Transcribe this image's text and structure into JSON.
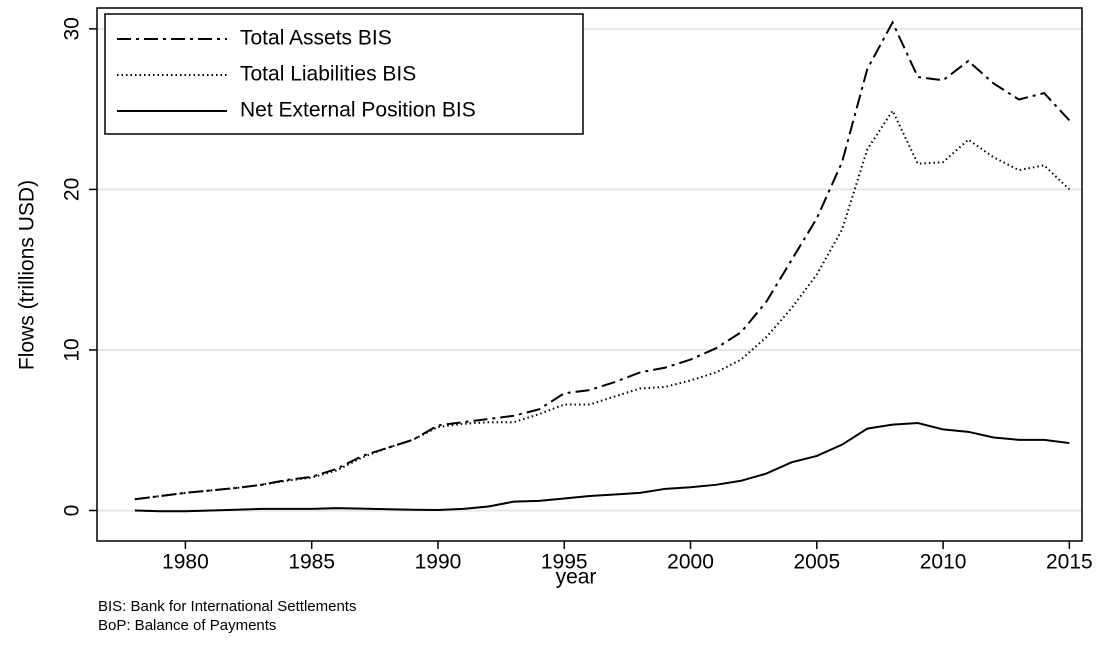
{
  "chart_data": {
    "type": "line",
    "x_label": "year",
    "y_label": "Flows (trillions USD)",
    "notes": [
      "BIS: Bank for International Settlements",
      "BoP: Balance of Payments"
    ],
    "x": [
      1978,
      1979,
      1980,
      1981,
      1982,
      1983,
      1984,
      1985,
      1986,
      1987,
      1988,
      1989,
      1990,
      1991,
      1992,
      1993,
      1994,
      1995,
      1996,
      1997,
      1998,
      1999,
      2000,
      2001,
      2002,
      2003,
      2004,
      2005,
      2006,
      2007,
      2008,
      2009,
      2010,
      2011,
      2012,
      2013,
      2014,
      2015
    ],
    "series": [
      {
        "name": "Total Assets BIS",
        "color": "#000000",
        "dash": "dash-dot",
        "values": [
          0.7,
          0.9,
          1.1,
          1.25,
          1.4,
          1.6,
          1.9,
          2.1,
          2.6,
          3.4,
          3.9,
          4.4,
          5.3,
          5.5,
          5.7,
          5.9,
          6.3,
          7.3,
          7.5,
          8.0,
          8.6,
          8.9,
          9.4,
          10.1,
          11.1,
          13.0,
          15.6,
          18.2,
          21.7,
          27.5,
          30.4,
          27.0,
          26.8,
          28.0,
          26.6,
          25.6,
          26.0,
          24.3
        ]
      },
      {
        "name": "Total Liabilities BIS",
        "color": "#000000",
        "dash": "dotted",
        "values": [
          0.7,
          0.9,
          1.1,
          1.25,
          1.4,
          1.6,
          1.85,
          2.05,
          2.5,
          3.3,
          3.9,
          4.4,
          5.2,
          5.4,
          5.5,
          5.5,
          6.0,
          6.6,
          6.6,
          7.1,
          7.6,
          7.7,
          8.1,
          8.6,
          9.4,
          10.8,
          12.6,
          14.7,
          17.5,
          22.5,
          24.9,
          21.6,
          21.7,
          23.1,
          22.0,
          21.2,
          21.5,
          20.0
        ]
      },
      {
        "name": "Net External Position BIS",
        "color": "#000000",
        "dash": "solid",
        "values": [
          0,
          -0.05,
          -0.05,
          0,
          0.05,
          0.1,
          0.1,
          0.1,
          0.15,
          0.12,
          0.08,
          0.05,
          0.03,
          0.1,
          0.25,
          0.55,
          0.6,
          0.75,
          0.9,
          1.0,
          1.1,
          1.35,
          1.45,
          1.6,
          1.85,
          2.3,
          3.0,
          3.4,
          4.1,
          5.1,
          5.35,
          5.45,
          5.05,
          4.9,
          4.55,
          4.4,
          4.4,
          4.2
        ]
      }
    ],
    "xlim": [
      1976.5,
      2015.5
    ],
    "xticks": [
      1980,
      1985,
      1990,
      1995,
      2000,
      2005,
      2010,
      2015
    ],
    "ylim": [
      -1.9,
      31.3
    ],
    "yticks": [
      0,
      10,
      20,
      30
    ],
    "grid": true,
    "legend_position": "top-left"
  }
}
